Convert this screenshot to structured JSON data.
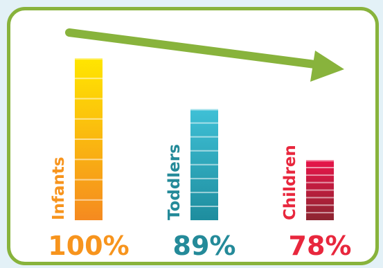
{
  "chart_data": {
    "type": "bar",
    "categories": [
      "Infants",
      "Toddlers",
      "Children"
    ],
    "values": [
      100,
      89,
      78
    ],
    "value_labels": [
      "100%",
      "89%",
      "78%"
    ],
    "ylim": [
      65,
      100
    ],
    "grid": false,
    "trend_arrow": "down-right",
    "colors": {
      "Infants": {
        "top": "#ffe600",
        "bottom": "#f58a20",
        "text": "#f7941d"
      },
      "Toddlers": {
        "top": "#3fc0d6",
        "bottom": "#1e8d9e",
        "text": "#248a99"
      },
      "Children": {
        "top": "#e8154a",
        "bottom": "#8c2530",
        "text": "#e8273d"
      }
    },
    "frame_color": "#88b33c",
    "arrow_color": "#88b33c"
  }
}
